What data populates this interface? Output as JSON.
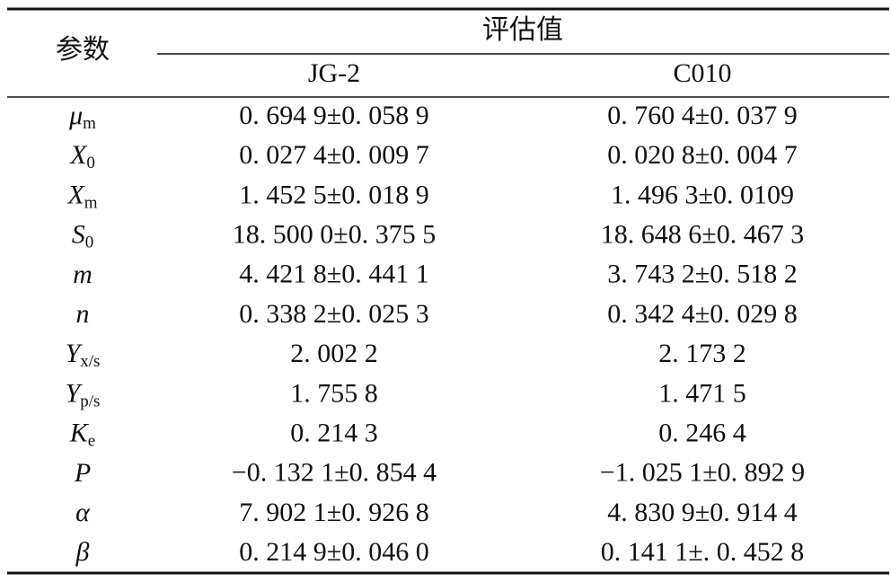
{
  "header": {
    "param": "参数",
    "group": "评估值",
    "columns": [
      "JG-2",
      "C010"
    ]
  },
  "rows": [
    {
      "symbol": "μ",
      "sub": "m",
      "values": [
        "0. 694 9±0. 058 9",
        "0. 760 4±0. 037 9"
      ]
    },
    {
      "symbol": "X",
      "sub": "0",
      "values": [
        "0. 027 4±0. 009 7",
        "0. 020 8±0. 004 7"
      ]
    },
    {
      "symbol": "X",
      "sub": "m",
      "values": [
        "1. 452 5±0. 018 9",
        "1. 496 3±0. 0109"
      ]
    },
    {
      "symbol": "S",
      "sub": "0",
      "values": [
        "18. 500 0±0. 375 5",
        "18. 648 6±0. 467 3"
      ]
    },
    {
      "symbol": "m",
      "values": [
        "4. 421 8±0. 441 1",
        "3. 743 2±0. 518 2"
      ]
    },
    {
      "symbol": "n",
      "values": [
        "0. 338 2±0. 025 3",
        "0. 342 4±0. 029 8"
      ]
    },
    {
      "symbol": "Y",
      "sub": "x/s",
      "values": [
        "2. 002 2",
        "2. 173 2"
      ]
    },
    {
      "symbol": "Y",
      "sub": "p/s",
      "values": [
        "1. 755 8",
        "1. 471 5"
      ]
    },
    {
      "symbol": "K",
      "sub": "e",
      "values": [
        "0. 214 3",
        "0. 246 4"
      ]
    },
    {
      "symbol": "P",
      "values": [
        "−0. 132 1±0. 854 4",
        "−1. 025 1±0. 892 9"
      ]
    },
    {
      "symbol": "α",
      "values": [
        "7. 902 1±0. 926 8",
        "4. 830 9±0. 914 4"
      ]
    },
    {
      "symbol": "β",
      "values": [
        "0. 214 9±0. 046 0",
        "0. 141 1±. 0. 452 8"
      ]
    }
  ]
}
